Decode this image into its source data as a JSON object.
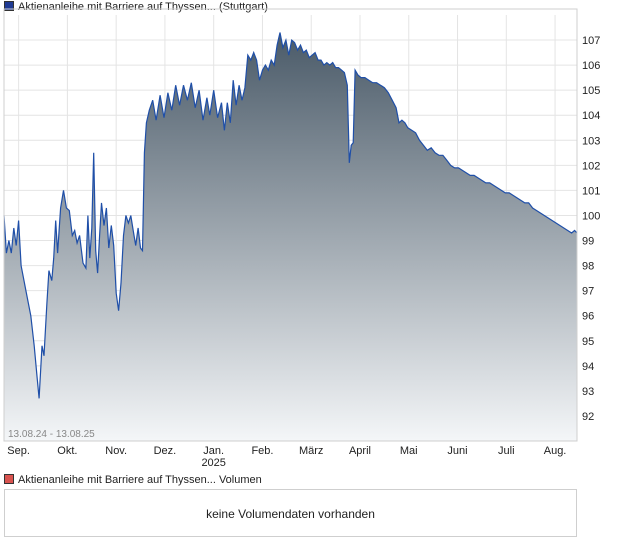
{
  "price_legend": {
    "label": "Aktienanleihe mit Barriere auf Thyssen... (Stuttgart)",
    "color": "#1f3a93"
  },
  "volume_legend": {
    "label": "Aktienanleihe mit Barriere auf Thyssen... Volumen",
    "color": "#d9534f"
  },
  "range_label": "13.08.24 - 13.08.25",
  "volume_message": "keine Volumendaten vorhanden",
  "colors": {
    "line": "#1f4fa8",
    "fill_top": "#4a5a68",
    "fill_bottom": "#f4f6f8",
    "grid": "#e4e4e4",
    "frame": "#cfcfcf"
  },
  "chart_data": {
    "type": "area",
    "title": "Aktienanleihe mit Barriere auf Thyssen... (Stuttgart)",
    "ylim": [
      91,
      108
    ],
    "y_ticks": [
      92,
      93,
      94,
      95,
      96,
      97,
      98,
      99,
      100,
      101,
      102,
      103,
      104,
      105,
      106,
      107
    ],
    "x_ticks": [
      {
        "label": "Sep.",
        "sub": "",
        "x": 0.3
      },
      {
        "label": "Okt.",
        "sub": "",
        "x": 1.3
      },
      {
        "label": "Nov.",
        "sub": "",
        "x": 2.3
      },
      {
        "label": "Dez.",
        "sub": "",
        "x": 3.3
      },
      {
        "label": "Jan.",
        "sub": "2025",
        "x": 4.3
      },
      {
        "label": "Feb.",
        "sub": "",
        "x": 5.3
      },
      {
        "label": "März",
        "sub": "",
        "x": 6.3
      },
      {
        "label": "April",
        "sub": "",
        "x": 7.3
      },
      {
        "label": "Mai",
        "sub": "",
        "x": 8.3
      },
      {
        "label": "Juni",
        "sub": "",
        "x": 9.3
      },
      {
        "label": "Juli",
        "sub": "",
        "x": 10.3
      },
      {
        "label": "Aug.",
        "sub": "",
        "x": 11.3
      }
    ],
    "x_range": [
      0,
      11.75
    ],
    "grid": true,
    "series": [
      {
        "points": [
          [
            0.0,
            100.0
          ],
          [
            0.05,
            98.5
          ],
          [
            0.1,
            99.0
          ],
          [
            0.15,
            98.5
          ],
          [
            0.2,
            99.5
          ],
          [
            0.25,
            98.8
          ],
          [
            0.3,
            99.8
          ],
          [
            0.35,
            98.0
          ],
          [
            0.45,
            97.0
          ],
          [
            0.55,
            96.0
          ],
          [
            0.62,
            94.8
          ],
          [
            0.68,
            93.5
          ],
          [
            0.72,
            92.7
          ],
          [
            0.78,
            94.8
          ],
          [
            0.82,
            94.4
          ],
          [
            0.88,
            96.5
          ],
          [
            0.92,
            97.8
          ],
          [
            0.98,
            97.4
          ],
          [
            1.02,
            98.3
          ],
          [
            1.06,
            99.8
          ],
          [
            1.1,
            98.5
          ],
          [
            1.16,
            100.3
          ],
          [
            1.22,
            101.0
          ],
          [
            1.28,
            100.3
          ],
          [
            1.34,
            100.2
          ],
          [
            1.4,
            99.2
          ],
          [
            1.45,
            99.4
          ],
          [
            1.5,
            98.9
          ],
          [
            1.55,
            99.2
          ],
          [
            1.62,
            98.1
          ],
          [
            1.68,
            97.9
          ],
          [
            1.72,
            100.0
          ],
          [
            1.76,
            98.3
          ],
          [
            1.8,
            99.5
          ],
          [
            1.84,
            102.5
          ],
          [
            1.88,
            98.6
          ],
          [
            1.92,
            97.7
          ],
          [
            1.96,
            99.2
          ],
          [
            2.0,
            100.5
          ],
          [
            2.05,
            99.6
          ],
          [
            2.1,
            100.3
          ],
          [
            2.15,
            98.7
          ],
          [
            2.2,
            99.6
          ],
          [
            2.25,
            98.8
          ],
          [
            2.3,
            96.9
          ],
          [
            2.35,
            96.2
          ],
          [
            2.4,
            97.3
          ],
          [
            2.45,
            99.2
          ],
          [
            2.5,
            100.0
          ],
          [
            2.55,
            99.7
          ],
          [
            2.6,
            100.0
          ],
          [
            2.65,
            99.4
          ],
          [
            2.7,
            98.8
          ],
          [
            2.75,
            99.5
          ],
          [
            2.8,
            98.7
          ],
          [
            2.84,
            98.6
          ],
          [
            2.88,
            102.5
          ],
          [
            2.92,
            103.7
          ],
          [
            2.98,
            104.2
          ],
          [
            3.05,
            104.6
          ],
          [
            3.12,
            103.8
          ],
          [
            3.2,
            104.8
          ],
          [
            3.28,
            103.9
          ],
          [
            3.36,
            104.9
          ],
          [
            3.44,
            104.2
          ],
          [
            3.52,
            105.2
          ],
          [
            3.6,
            104.4
          ],
          [
            3.68,
            105.2
          ],
          [
            3.76,
            104.6
          ],
          [
            3.84,
            105.3
          ],
          [
            3.92,
            104.3
          ],
          [
            4.0,
            105.0
          ],
          [
            4.08,
            103.8
          ],
          [
            4.16,
            104.7
          ],
          [
            4.22,
            104.0
          ],
          [
            4.3,
            105.0
          ],
          [
            4.38,
            103.9
          ],
          [
            4.46,
            104.5
          ],
          [
            4.52,
            103.4
          ],
          [
            4.58,
            104.5
          ],
          [
            4.64,
            103.7
          ],
          [
            4.7,
            105.4
          ],
          [
            4.76,
            104.4
          ],
          [
            4.82,
            105.2
          ],
          [
            4.88,
            104.6
          ],
          [
            4.94,
            105.1
          ],
          [
            5.0,
            106.4
          ],
          [
            5.06,
            106.2
          ],
          [
            5.12,
            106.5
          ],
          [
            5.18,
            106.2
          ],
          [
            5.24,
            105.4
          ],
          [
            5.3,
            105.8
          ],
          [
            5.36,
            106.0
          ],
          [
            5.42,
            105.8
          ],
          [
            5.48,
            106.2
          ],
          [
            5.54,
            106.0
          ],
          [
            5.6,
            106.8
          ],
          [
            5.66,
            107.3
          ],
          [
            5.72,
            106.7
          ],
          [
            5.78,
            107.0
          ],
          [
            5.84,
            106.4
          ],
          [
            5.9,
            107.0
          ],
          [
            5.96,
            106.9
          ],
          [
            6.02,
            106.6
          ],
          [
            6.08,
            106.8
          ],
          [
            6.14,
            106.5
          ],
          [
            6.2,
            106.6
          ],
          [
            6.26,
            106.3
          ],
          [
            6.32,
            106.4
          ],
          [
            6.38,
            106.5
          ],
          [
            6.44,
            106.2
          ],
          [
            6.5,
            106.2
          ],
          [
            6.56,
            106.0
          ],
          [
            6.62,
            106.1
          ],
          [
            6.68,
            106.0
          ],
          [
            6.74,
            106.1
          ],
          [
            6.8,
            105.9
          ],
          [
            6.86,
            105.9
          ],
          [
            6.92,
            105.8
          ],
          [
            6.98,
            105.7
          ],
          [
            7.04,
            105.2
          ],
          [
            7.08,
            102.1
          ],
          [
            7.12,
            102.8
          ],
          [
            7.16,
            102.9
          ],
          [
            7.2,
            105.8
          ],
          [
            7.26,
            105.6
          ],
          [
            7.32,
            105.5
          ],
          [
            7.4,
            105.5
          ],
          [
            7.48,
            105.4
          ],
          [
            7.56,
            105.3
          ],
          [
            7.64,
            105.3
          ],
          [
            7.72,
            105.2
          ],
          [
            7.8,
            105.1
          ],
          [
            7.88,
            104.9
          ],
          [
            7.96,
            104.6
          ],
          [
            8.04,
            104.3
          ],
          [
            8.1,
            103.7
          ],
          [
            8.16,
            103.8
          ],
          [
            8.22,
            103.7
          ],
          [
            8.28,
            103.5
          ],
          [
            8.36,
            103.4
          ],
          [
            8.44,
            103.3
          ],
          [
            8.52,
            103.0
          ],
          [
            8.6,
            102.8
          ],
          [
            8.68,
            102.6
          ],
          [
            8.76,
            102.7
          ],
          [
            8.84,
            102.5
          ],
          [
            8.92,
            102.4
          ],
          [
            9.0,
            102.4
          ],
          [
            9.08,
            102.2
          ],
          [
            9.16,
            102.0
          ],
          [
            9.24,
            101.9
          ],
          [
            9.32,
            101.9
          ],
          [
            9.4,
            101.8
          ],
          [
            9.48,
            101.7
          ],
          [
            9.56,
            101.6
          ],
          [
            9.64,
            101.6
          ],
          [
            9.72,
            101.5
          ],
          [
            9.8,
            101.4
          ],
          [
            9.88,
            101.3
          ],
          [
            9.96,
            101.3
          ],
          [
            10.04,
            101.2
          ],
          [
            10.12,
            101.1
          ],
          [
            10.2,
            101.0
          ],
          [
            10.28,
            100.9
          ],
          [
            10.36,
            100.9
          ],
          [
            10.44,
            100.8
          ],
          [
            10.52,
            100.7
          ],
          [
            10.6,
            100.6
          ],
          [
            10.68,
            100.5
          ],
          [
            10.76,
            100.5
          ],
          [
            10.84,
            100.3
          ],
          [
            10.92,
            100.2
          ],
          [
            11.0,
            100.1
          ],
          [
            11.08,
            100.0
          ],
          [
            11.16,
            99.9
          ],
          [
            11.24,
            99.8
          ],
          [
            11.32,
            99.7
          ],
          [
            11.4,
            99.6
          ],
          [
            11.48,
            99.5
          ],
          [
            11.56,
            99.4
          ],
          [
            11.64,
            99.3
          ],
          [
            11.7,
            99.4
          ],
          [
            11.75,
            99.3
          ]
        ]
      }
    ]
  }
}
